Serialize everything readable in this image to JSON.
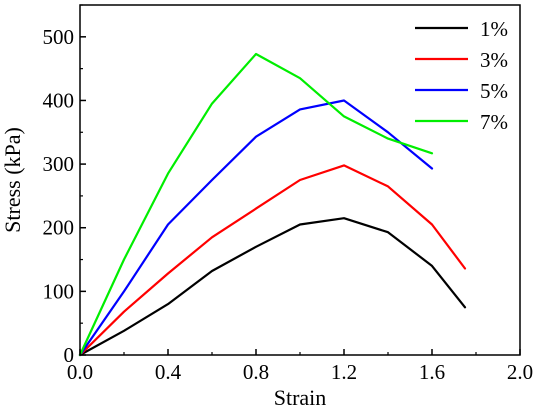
{
  "chart_data": {
    "type": "line",
    "xlabel": "Strain",
    "ylabel": "Stress (kPa)",
    "xlim": [
      0.0,
      2.0
    ],
    "ylim": [
      0,
      550
    ],
    "x_ticks": [
      "0.0",
      "0.4",
      "0.8",
      "1.2",
      "1.6",
      "2.0"
    ],
    "y_ticks": [
      "0",
      "100",
      "200",
      "300",
      "400",
      "500"
    ],
    "x_tick_values": [
      0.0,
      0.4,
      0.8,
      1.2,
      1.6,
      2.0
    ],
    "y_tick_values": [
      0,
      100,
      200,
      300,
      400,
      500
    ],
    "grid": false,
    "legend_position": "top-right",
    "series": [
      {
        "name": "1%",
        "color": "#000000",
        "x": [
          0.0,
          0.2,
          0.4,
          0.6,
          0.8,
          1.0,
          1.2,
          1.4,
          1.6,
          1.75
        ],
        "y": [
          0,
          38,
          80,
          132,
          170,
          205,
          215,
          193,
          140,
          75
        ]
      },
      {
        "name": "3%",
        "color": "#ff0000",
        "x": [
          0.0,
          0.2,
          0.4,
          0.6,
          0.8,
          1.0,
          1.2,
          1.4,
          1.6,
          1.75
        ],
        "y": [
          0,
          68,
          128,
          185,
          230,
          275,
          298,
          265,
          205,
          136
        ]
      },
      {
        "name": "5%",
        "color": "#0000ff",
        "x": [
          0.0,
          0.2,
          0.4,
          0.6,
          0.8,
          1.0,
          1.2,
          1.4,
          1.6
        ],
        "y": [
          0,
          100,
          205,
          275,
          343,
          386,
          400,
          350,
          293
        ]
      },
      {
        "name": "7%",
        "color": "#00ee00",
        "x": [
          0.0,
          0.2,
          0.4,
          0.6,
          0.8,
          1.0,
          1.2,
          1.4,
          1.6
        ],
        "y": [
          0,
          150,
          285,
          395,
          473,
          435,
          375,
          340,
          317
        ]
      }
    ]
  }
}
